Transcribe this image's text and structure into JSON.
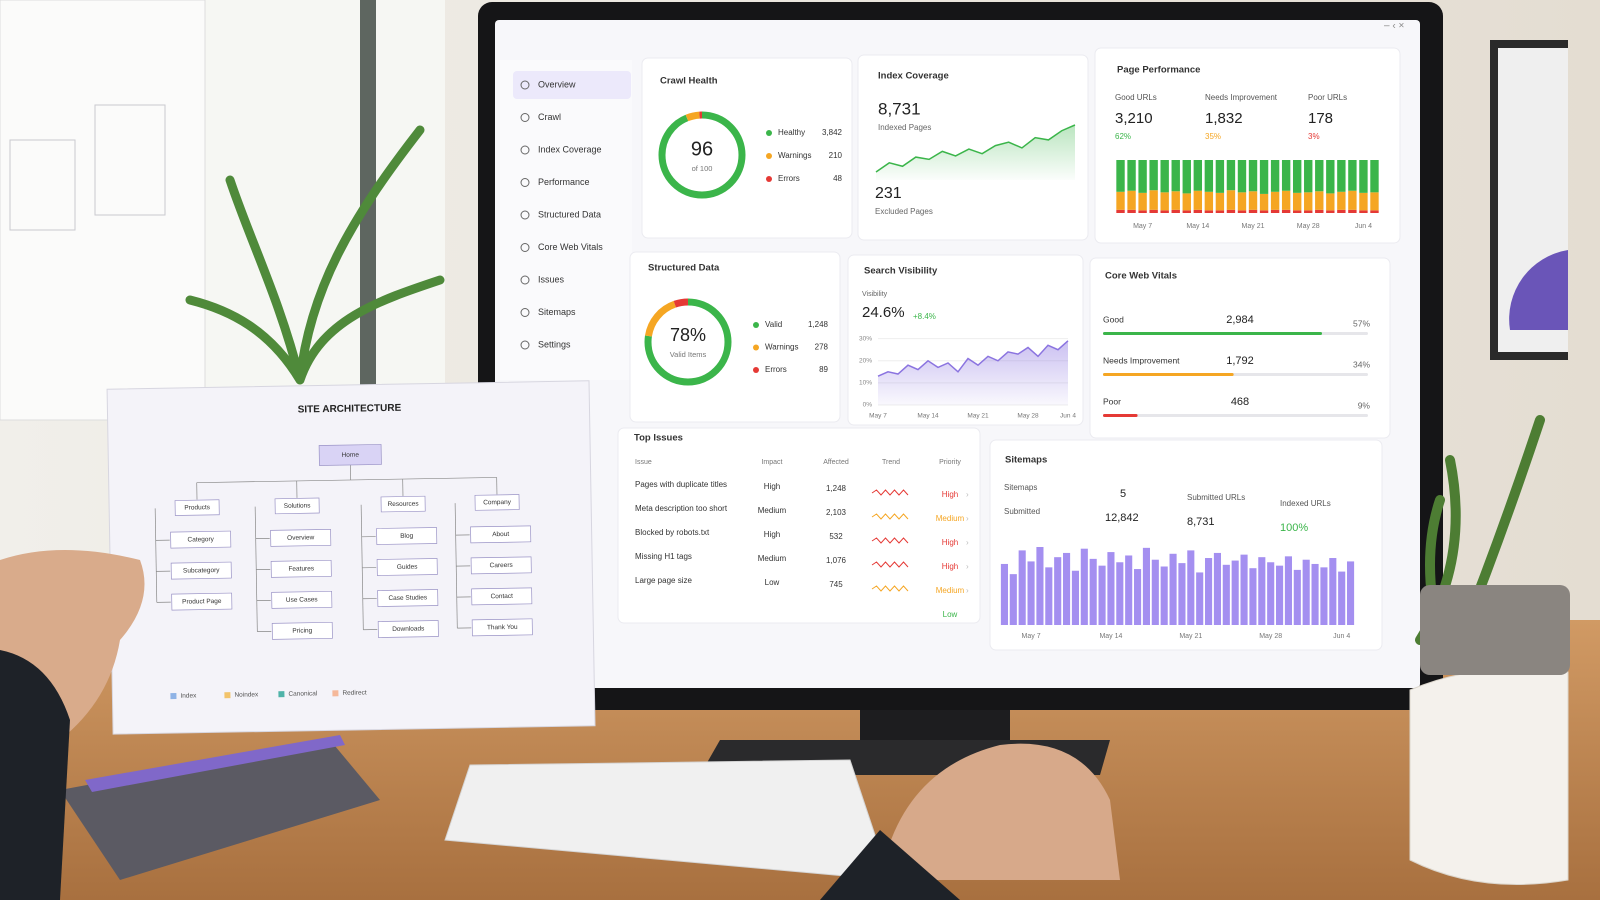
{
  "sidebar": {
    "items": [
      "Overview",
      "Crawl",
      "Index Coverage",
      "Performance",
      "Structured Data",
      "Core Web Vitals",
      "Issues",
      "Sitemaps",
      "Settings"
    ],
    "active": 0
  },
  "crawl_health": {
    "title": "Crawl Health",
    "score": 96,
    "score_caption": "of 100",
    "legend": [
      {
        "label": "Healthy",
        "value": 3842,
        "value_label": "3,842",
        "color": "#3bb54a"
      },
      {
        "label": "Warnings",
        "value": 210,
        "value_label": "210",
        "color": "#f5a623"
      },
      {
        "label": "Errors",
        "value": 48,
        "value_label": "48",
        "color": "#e53935"
      }
    ]
  },
  "index_coverage": {
    "title": "Index Coverage",
    "indexed": 8731,
    "indexed_label": "8,731",
    "indexed_caption": "Indexed Pages",
    "excluded": 231,
    "excluded_caption": "Excluded Pages",
    "color": "#3bb54a",
    "trend": [
      22,
      30,
      27,
      35,
      33,
      40,
      36,
      42,
      38,
      45,
      48,
      43,
      52,
      50,
      58,
      63
    ]
  },
  "page_performance": {
    "title": "Page Performance",
    "categories": [
      null,
      null,
      "May 7",
      null,
      null,
      null,
      null,
      "May 14",
      null,
      null,
      null,
      null,
      "May 21",
      null,
      null,
      null,
      null,
      "May 28",
      null,
      null,
      null,
      null,
      "Jun 4",
      null
    ],
    "series": [
      {
        "name": "Good URLs",
        "total": 3210,
        "total_label": "3,210",
        "share": 62,
        "share_label": "62%",
        "color": "#3bb54a",
        "values": [
          60,
          58,
          62,
          57,
          61,
          59,
          63,
          58,
          60,
          62,
          57,
          61,
          59,
          64,
          60,
          58,
          62,
          61,
          59,
          63,
          60,
          58,
          62,
          61
        ]
      },
      {
        "name": "Needs Improvement",
        "total": 1832,
        "total_label": "1,832",
        "share": 35,
        "share_label": "35%",
        "color": "#f5a623",
        "values": [
          34,
          36,
          33,
          37,
          34,
          35,
          32,
          36,
          35,
          33,
          37,
          34,
          35,
          31,
          34,
          36,
          33,
          34,
          35,
          32,
          34,
          36,
          33,
          34
        ]
      },
      {
        "name": "Poor URLs",
        "total": 178,
        "total_label": "178",
        "share": 3,
        "share_label": "3%",
        "color": "#e53935",
        "values": [
          6,
          6,
          5,
          6,
          5,
          6,
          5,
          6,
          5,
          5,
          6,
          5,
          6,
          5,
          6,
          6,
          5,
          5,
          6,
          5,
          6,
          6,
          5,
          5
        ]
      }
    ]
  },
  "structured_data": {
    "title": "Structured Data",
    "value": 78,
    "value_label": "78%",
    "caption": "Valid Items",
    "legend": [
      {
        "label": "Valid",
        "value": 1248,
        "value_label": "1,248",
        "color": "#3bb54a"
      },
      {
        "label": "Warnings",
        "value": 278,
        "value_label": "278",
        "color": "#f5a623"
      },
      {
        "label": "Errors",
        "value": 89,
        "value_label": "89",
        "color": "#e53935"
      }
    ]
  },
  "search_visibility": {
    "title": "Search Visibility",
    "metric_label": "Visibility",
    "value": 24.6,
    "value_label": "24.6%",
    "change": 8.4,
    "change_label": "+8.4%",
    "color": "#8b74e0",
    "ylim": [
      0,
      33
    ],
    "yticks": [
      {
        "value": 0,
        "label": "0%"
      },
      {
        "value": 10,
        "label": "10%"
      },
      {
        "value": 20,
        "label": "20%"
      },
      {
        "value": 30,
        "label": "30%"
      }
    ],
    "categories": [
      "May 7",
      null,
      null,
      null,
      null,
      "May 14",
      null,
      null,
      null,
      null,
      "May 21",
      null,
      null,
      null,
      null,
      "May 28",
      null,
      null,
      null,
      "Jun 4"
    ],
    "values": [
      13,
      15,
      14,
      18,
      16,
      20,
      17,
      19,
      15,
      21,
      18,
      22,
      20,
      24,
      23,
      26,
      22,
      27,
      25,
      29
    ]
  },
  "core_web_vitals": {
    "title": "Core Web Vitals",
    "rows": [
      {
        "label": "Good",
        "value": 2984,
        "value_label": "2,984",
        "share": 57,
        "share_label": "57%",
        "color": "#3bb54a"
      },
      {
        "label": "Needs Improvement",
        "value": 1792,
        "value_label": "1,792",
        "share": 34,
        "share_label": "34%",
        "color": "#f5a623"
      },
      {
        "label": "Poor",
        "value": 468,
        "value_label": "468",
        "share": 9,
        "share_label": "9%",
        "color": "#e53935"
      }
    ]
  },
  "top_issues": {
    "title": "Top Issues",
    "headers": [
      "Issue",
      "Impact",
      "Affected",
      "Trend",
      "Priority"
    ],
    "rows": [
      {
        "issue": "Pages with duplicate titles",
        "impact": "High",
        "affected": 1248,
        "affected_label": "1,248",
        "priority": "High",
        "priority_color": "#e53935"
      },
      {
        "issue": "Meta description too short",
        "impact": "Medium",
        "affected": 2103,
        "affected_label": "2,103",
        "priority": "Medium",
        "priority_color": "#f5a623"
      },
      {
        "issue": "Blocked by robots.txt",
        "impact": "High",
        "affected": 532,
        "affected_label": "532",
        "priority": "High",
        "priority_color": "#e53935"
      },
      {
        "issue": "Missing H1 tags",
        "impact": "Medium",
        "affected": 1076,
        "affected_label": "1,076",
        "priority": "High",
        "priority_color": "#e53935"
      },
      {
        "issue": "Large page size",
        "impact": "Low",
        "affected": 745,
        "affected_label": "745",
        "priority": "Medium",
        "priority_color": "#f5a623"
      }
    ],
    "extra_priority": {
      "label": "Low",
      "color": "#3bb54a"
    }
  },
  "sitemaps": {
    "title": "Sitemaps",
    "color": "#a48ff0",
    "stats": [
      {
        "label": "Sitemaps",
        "value": 5
      },
      {
        "label": "Submitted",
        "value": 12842,
        "value_label": "12,842"
      },
      {
        "label": "Submitted URLs",
        "value": 8731,
        "value_label": "8,731"
      },
      {
        "label": "Indexed URLs",
        "value": 100,
        "value_label": "100%"
      }
    ],
    "categories": [
      null,
      null,
      null,
      "May 7",
      null,
      null,
      null,
      null,
      null,
      null,
      null,
      null,
      "May 14",
      null,
      null,
      null,
      null,
      null,
      null,
      null,
      null,
      "May 21",
      null,
      null,
      null,
      null,
      null,
      null,
      null,
      null,
      "May 28",
      null,
      null,
      null,
      null,
      null,
      null,
      null,
      "Jun 4",
      null
    ],
    "values": [
      72,
      60,
      88,
      75,
      92,
      68,
      80,
      85,
      64,
      90,
      78,
      70,
      86,
      74,
      82,
      66,
      91,
      77,
      69,
      84,
      73,
      88,
      62,
      79,
      85,
      71,
      76,
      83,
      67,
      80,
      74,
      70,
      81,
      65,
      77,
      72,
      68,
      79,
      63,
      75
    ]
  },
  "site_architecture": {
    "title": "SITE ARCHITECTURE",
    "root": "Home",
    "sections": [
      {
        "label": "Products",
        "children": [
          "Category",
          "Subcategory",
          "Product Page"
        ]
      },
      {
        "label": "Solutions",
        "children": [
          "Overview",
          "Features",
          "Use Cases",
          "Pricing"
        ]
      },
      {
        "label": "Resources",
        "children": [
          "Blog",
          "Guides",
          "Case Studies",
          "Downloads"
        ]
      },
      {
        "label": "Company",
        "children": [
          "About",
          "Careers",
          "Contact",
          "Thank You"
        ]
      }
    ],
    "legend": [
      {
        "label": "Index",
        "color": "#8fb3e6"
      },
      {
        "label": "Noindex",
        "color": "#f2c36b"
      },
      {
        "label": "Canonical",
        "color": "#4fb3a9"
      },
      {
        "label": "Redirect",
        "color": "#f5b89a"
      }
    ]
  }
}
